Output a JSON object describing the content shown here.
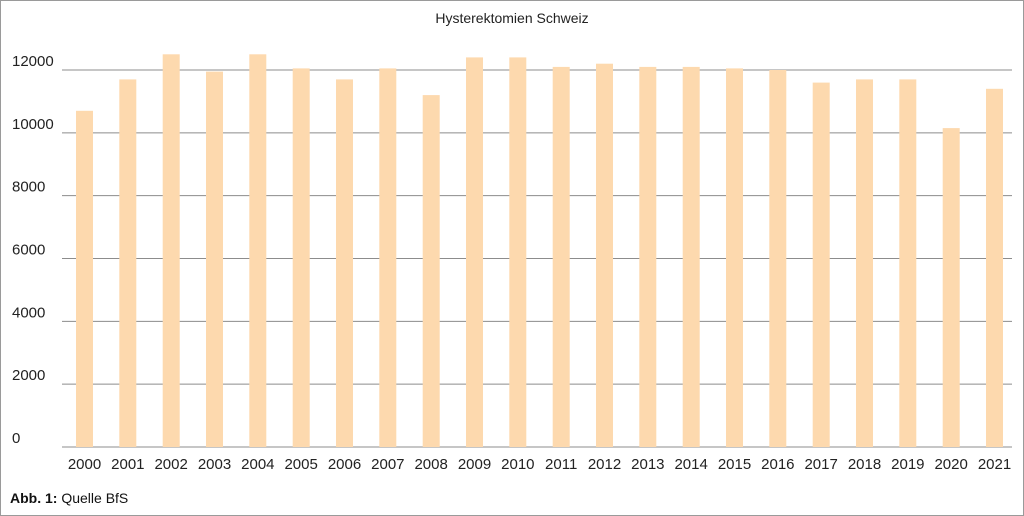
{
  "chart_data": {
    "type": "bar",
    "title": "Hysterektomien Schweiz",
    "xlabel": "",
    "ylabel": "",
    "ylim": [
      0,
      12000
    ],
    "yticks": [
      0,
      2000,
      4000,
      6000,
      8000,
      10000,
      12000
    ],
    "categories": [
      "2000",
      "2001",
      "2002",
      "2003",
      "2004",
      "2005",
      "2006",
      "2007",
      "2008",
      "2009",
      "2010",
      "2011",
      "2012",
      "2013",
      "2014",
      "2015",
      "2016",
      "2017",
      "2018",
      "2019",
      "2020",
      "2021"
    ],
    "values": [
      10700,
      11700,
      12500,
      11950,
      12500,
      12050,
      11700,
      12050,
      11200,
      12400,
      12400,
      12100,
      12200,
      12100,
      12100,
      12050,
      12000,
      11600,
      11700,
      11700,
      10150,
      11400
    ],
    "bar_color": "#fdd9ae",
    "grid_color": "#8c8c8c",
    "grid": true
  },
  "caption": {
    "label": "Abb. 1:",
    "text": "Quelle BfS"
  }
}
